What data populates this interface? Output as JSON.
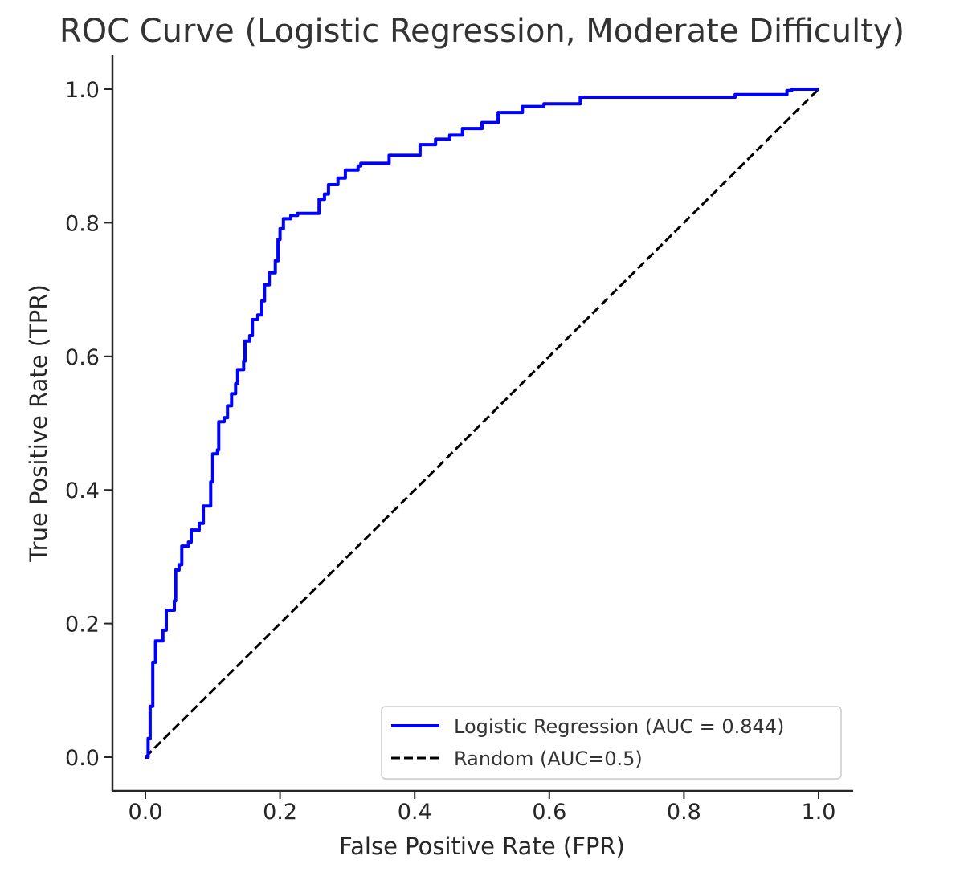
{
  "chart_data": {
    "type": "line",
    "title": "ROC Curve (Logistic Regression, Moderate Difficulty)",
    "xlabel": "False Positive Rate (FPR)",
    "ylabel": "True Positive Rate (TPR)",
    "xlim": [
      -0.05,
      1.05
    ],
    "ylim": [
      -0.05,
      1.05
    ],
    "xticks": [
      0.0,
      0.2,
      0.4,
      0.6,
      0.8,
      1.0
    ],
    "xtick_labels": [
      "0.0",
      "0.2",
      "0.4",
      "0.6",
      "0.8",
      "1.0"
    ],
    "yticks": [
      0.0,
      0.2,
      0.4,
      0.6,
      0.8,
      1.0
    ],
    "ytick_labels": [
      "0.0",
      "0.2",
      "0.4",
      "0.6",
      "0.8",
      "1.0"
    ],
    "grid": false,
    "legend_position": "lower-right",
    "series": [
      {
        "name": "Logistic Regression (AUC = 0.844)",
        "color": "#0000ff",
        "style": "solid",
        "step": true,
        "x": [
          0.0,
          0.004,
          0.007,
          0.011,
          0.015,
          0.026,
          0.031,
          0.043,
          0.045,
          0.05,
          0.054,
          0.064,
          0.068,
          0.08,
          0.086,
          0.094,
          0.097,
          0.1,
          0.107,
          0.109,
          0.117,
          0.122,
          0.128,
          0.134,
          0.137,
          0.146,
          0.148,
          0.155,
          0.159,
          0.167,
          0.173,
          0.177,
          0.184,
          0.193,
          0.197,
          0.2,
          0.205,
          0.216,
          0.226,
          0.253,
          0.258,
          0.266,
          0.272,
          0.286,
          0.297,
          0.316,
          0.32,
          0.357,
          0.362,
          0.405,
          0.408,
          0.431,
          0.452,
          0.471,
          0.5,
          0.524,
          0.56,
          0.592,
          0.646,
          0.87,
          0.876,
          0.938,
          0.953,
          0.96,
          1.0
        ],
        "y": [
          0.0,
          0.028,
          0.076,
          0.142,
          0.174,
          0.19,
          0.22,
          0.234,
          0.28,
          0.288,
          0.316,
          0.322,
          0.34,
          0.35,
          0.376,
          0.376,
          0.412,
          0.454,
          0.46,
          0.502,
          0.508,
          0.526,
          0.544,
          0.559,
          0.58,
          0.593,
          0.623,
          0.631,
          0.655,
          0.662,
          0.683,
          0.707,
          0.725,
          0.743,
          0.775,
          0.791,
          0.806,
          0.811,
          0.814,
          0.814,
          0.835,
          0.843,
          0.857,
          0.867,
          0.879,
          0.885,
          0.889,
          0.889,
          0.901,
          0.901,
          0.917,
          0.925,
          0.931,
          0.941,
          0.95,
          0.965,
          0.974,
          0.978,
          0.988,
          0.988,
          0.992,
          0.992,
          0.998,
          1.0,
          1.0
        ]
      },
      {
        "name": "Random (AUC=0.5)",
        "color": "#000000",
        "style": "dashed",
        "step": false,
        "x": [
          0.0,
          1.0
        ],
        "y": [
          0.0,
          1.0
        ]
      }
    ]
  }
}
